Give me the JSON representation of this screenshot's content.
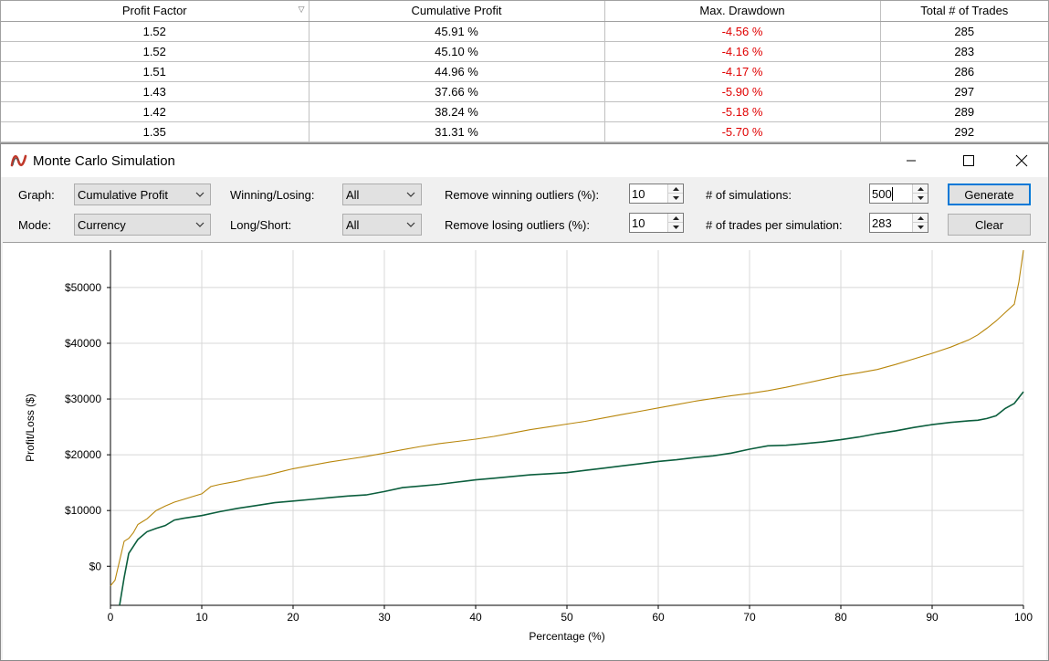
{
  "results_table": {
    "columns": [
      "Profit Factor",
      "Cumulative Profit",
      "Max. Drawdown",
      "Total # of Trades"
    ],
    "rows": [
      [
        "1.52",
        "45.91 %",
        "-4.56 %",
        "285"
      ],
      [
        "1.52",
        "45.10 %",
        "-4.16 %",
        "283"
      ],
      [
        "1.51",
        "44.96 %",
        "-4.17 %",
        "286"
      ],
      [
        "1.43",
        "37.66 %",
        "-5.90 %",
        "297"
      ],
      [
        "1.42",
        "38.24 %",
        "-5.18 %",
        "289"
      ],
      [
        "1.35",
        "31.31 %",
        "-5.70 %",
        "292"
      ]
    ],
    "negative_color": "#e00000"
  },
  "window": {
    "title": "Monte Carlo Simulation",
    "icon": "ninjatrader-logo-icon"
  },
  "toolbar": {
    "graph_label": "Graph:",
    "graph_value": "Cumulative Profit",
    "mode_label": "Mode:",
    "mode_value": "Currency",
    "winning_losing_label": "Winning/Losing:",
    "winning_losing_value": "All",
    "long_short_label": "Long/Short:",
    "long_short_value": "All",
    "remove_winning_label": "Remove winning outliers (%):",
    "remove_winning_value": "10",
    "remove_losing_label": "Remove losing outliers (%):",
    "remove_losing_value": "10",
    "num_simulations_label": "# of simulations:",
    "num_simulations_value": "500",
    "trades_per_sim_label": "# of trades per simulation:",
    "trades_per_sim_value": "283",
    "generate_label": "Generate",
    "clear_label": "Clear"
  },
  "chart_data": {
    "type": "line",
    "xlabel": "Percentage (%)",
    "ylabel": "Profit/Loss ($)",
    "xlim": [
      0,
      100
    ],
    "ylim": [
      -7000,
      56700
    ],
    "xticks": [
      0,
      10,
      20,
      30,
      40,
      50,
      60,
      70,
      80,
      90,
      100
    ],
    "yticks": [
      0,
      10000,
      20000,
      30000,
      40000,
      50000
    ],
    "ytick_labels": [
      "$0",
      "$10000",
      "$20000",
      "$30000",
      "$40000",
      "$50000"
    ],
    "grid": true,
    "series": [
      {
        "color": "#b8860b",
        "x": [
          0,
          0.5,
          1,
          1.5,
          2,
          2.5,
          3,
          3.5,
          4,
          5,
          6,
          7,
          8,
          9,
          10,
          11,
          12,
          13,
          14,
          15,
          16,
          17,
          18,
          19,
          20,
          22,
          24,
          26,
          28,
          30,
          32,
          34,
          36,
          38,
          40,
          42,
          44,
          46,
          48,
          50,
          52,
          54,
          56,
          58,
          60,
          62,
          64,
          66,
          68,
          70,
          72,
          74,
          76,
          78,
          80,
          82,
          84,
          86,
          88,
          90,
          92,
          94,
          95,
          96,
          97,
          98,
          99,
          99.5,
          100
        ],
        "values": [
          -3500,
          -2500,
          1000,
          4500,
          5000,
          6000,
          7500,
          8000,
          8500,
          10000,
          10800,
          11500,
          12000,
          12500,
          13000,
          14300,
          14700,
          15000,
          15300,
          15700,
          16000,
          16300,
          16700,
          17100,
          17500,
          18100,
          18700,
          19200,
          19700,
          20300,
          20900,
          21500,
          22000,
          22400,
          22800,
          23300,
          23900,
          24500,
          25000,
          25500,
          26000,
          26600,
          27200,
          27800,
          28400,
          29000,
          29600,
          30100,
          30600,
          31000,
          31500,
          32100,
          32800,
          33500,
          34200,
          34700,
          35300,
          36200,
          37200,
          38200,
          39300,
          40600,
          41500,
          42700,
          44000,
          45500,
          47000,
          51000,
          56700
        ]
      },
      {
        "color": "#0b5e3d",
        "x": [
          1,
          1.5,
          2,
          3,
          4,
          5,
          6,
          7,
          8,
          10,
          12,
          14,
          16,
          18,
          20,
          22,
          24,
          26,
          28,
          30,
          32,
          34,
          36,
          38,
          40,
          42,
          44,
          46,
          48,
          50,
          52,
          54,
          56,
          58,
          60,
          62,
          64,
          66,
          68,
          70,
          72,
          74,
          76,
          78,
          80,
          82,
          84,
          86,
          88,
          90,
          92,
          94,
          95,
          96,
          97,
          98,
          99,
          100
        ],
        "values": [
          -7000,
          -2000,
          2300,
          4800,
          6200,
          6800,
          7300,
          8300,
          8600,
          9100,
          9800,
          10400,
          10900,
          11400,
          11700,
          12000,
          12300,
          12600,
          12800,
          13400,
          14100,
          14400,
          14700,
          15100,
          15500,
          15800,
          16100,
          16400,
          16600,
          16800,
          17200,
          17600,
          18000,
          18400,
          18800,
          19100,
          19500,
          19800,
          20300,
          21000,
          21600,
          21700,
          22000,
          22300,
          22700,
          23200,
          23800,
          24300,
          24900,
          25400,
          25800,
          26100,
          26200,
          26500,
          27000,
          28300,
          29200,
          31300
        ]
      }
    ]
  }
}
